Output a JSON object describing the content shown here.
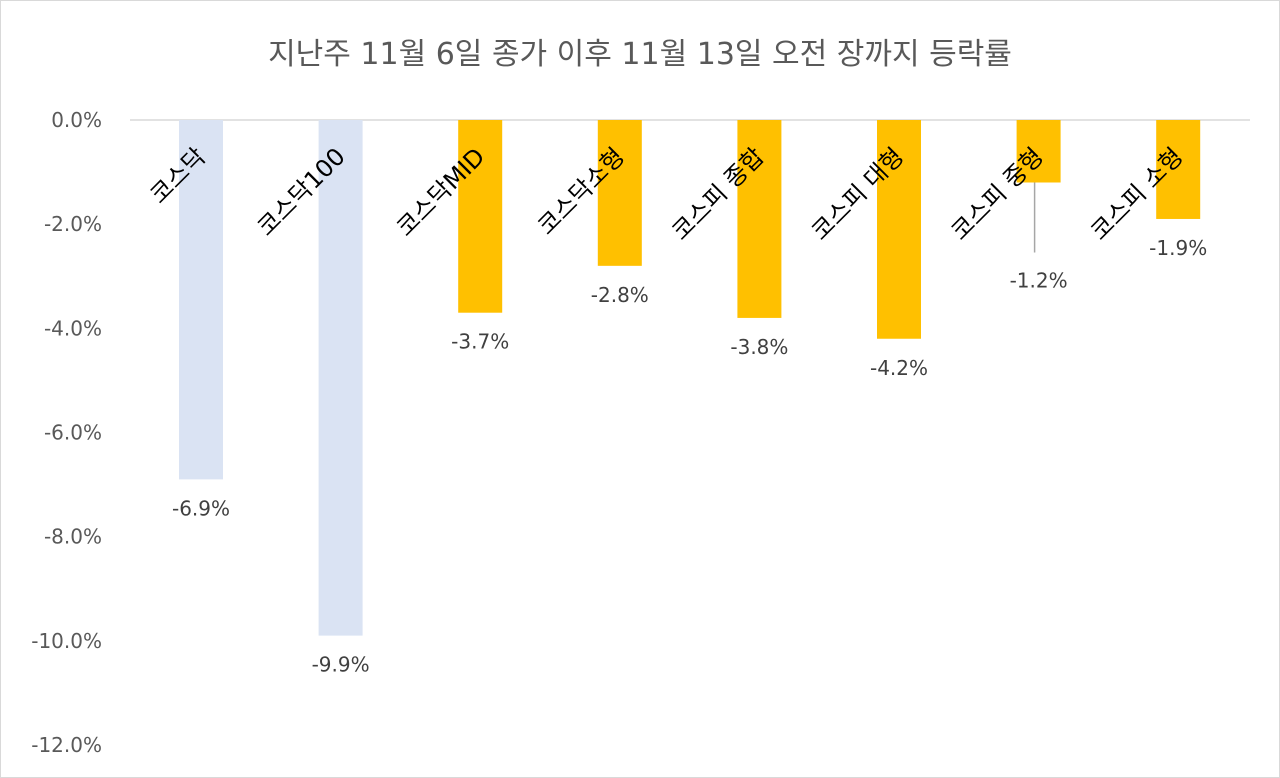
{
  "chart_data": {
    "type": "bar",
    "title": "지난주 11월 6일 종가 이후 11월 13일 오전 장까지 등락률",
    "categories": [
      "코스닥",
      "코스닥100",
      "코스닥MID",
      "코스닥소형",
      "코스피 종합",
      "코스피 대형",
      "코스피 중형",
      "코스피 소형"
    ],
    "values": [
      -6.9,
      -9.9,
      -3.7,
      -2.8,
      -3.8,
      -4.2,
      -1.2,
      -1.9
    ],
    "value_labels": [
      "-6.9%",
      "-9.9%",
      "-3.7%",
      "-2.8%",
      "-3.8%",
      "-4.2%",
      "-1.2%",
      "-1.9%"
    ],
    "bar_colors": [
      "#dae3f3",
      "#dae3f3",
      "#ffc000",
      "#ffc000",
      "#ffc000",
      "#ffc000",
      "#ffc000",
      "#ffc000"
    ],
    "ylim": [
      -12,
      0
    ],
    "yticks": [
      0,
      -2,
      -4,
      -6,
      -8,
      -10,
      -12
    ],
    "ytick_labels": [
      "0.0%",
      "-2.0%",
      "-4.0%",
      "-6.0%",
      "-8.0%",
      "-10.0%",
      "-12.0%"
    ],
    "xlabel": "",
    "ylabel": "",
    "grid": false,
    "legend": "none"
  }
}
